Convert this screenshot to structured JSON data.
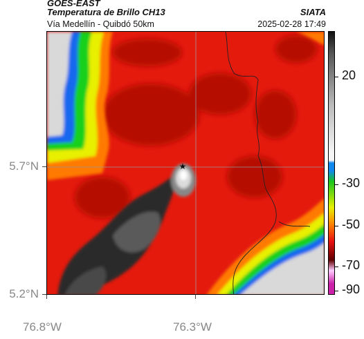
{
  "header": {
    "product": "GOES-EAST",
    "title": "Temperatura de Brillo CH13",
    "source": "SIATA",
    "region": "Vía Medellín - Quibdó 50km",
    "datetime": "2025-02-28 17:49"
  },
  "axes": {
    "lat_ticks": [
      "5.7°N",
      "5.2°N"
    ],
    "lon_ticks": [
      "76.8°W",
      "76.3°W"
    ]
  },
  "colorbar": {
    "ticks": [
      "20",
      "-30",
      "-50",
      "-70",
      "-90"
    ],
    "colors": [
      "#111111",
      "#555555",
      "#bbbbbb",
      "#f5f5f5",
      "#1188ee",
      "#19c51e",
      "#e6f000",
      "#ff8a00",
      "#e81010",
      "#600000",
      "#ffccff",
      "#cc22aa"
    ]
  },
  "map": {
    "marker": "★",
    "colors": {
      "warm_red": "#e41a0d",
      "deep_red": "#b50d06",
      "orange": "#ff7a00",
      "yellow": "#e8f000",
      "green": "#16d01a",
      "blue": "#1268ee",
      "cloud_gray": "#d9d9d9",
      "dark": "#2a2a2a"
    }
  }
}
